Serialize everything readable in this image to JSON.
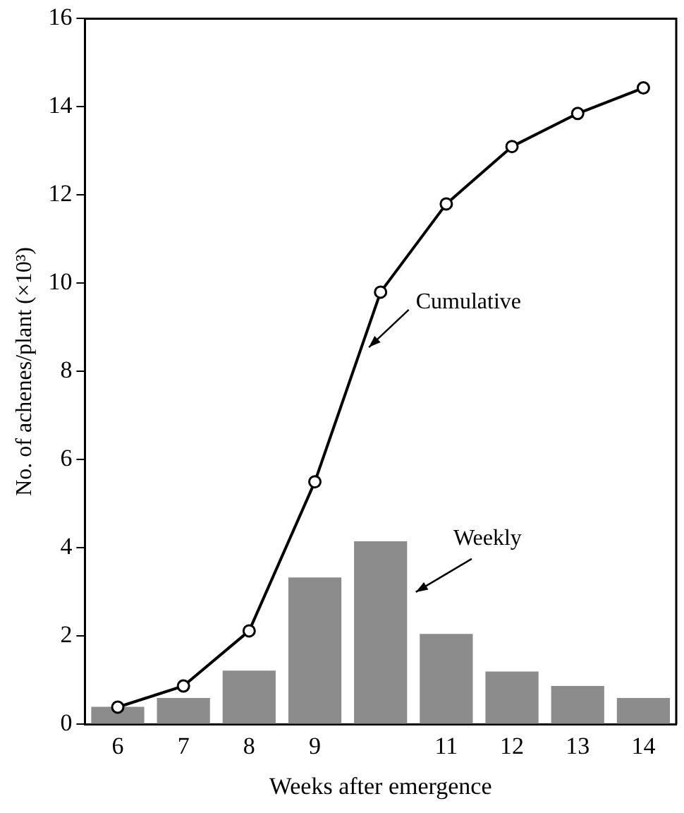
{
  "chart_data": {
    "type": "bar",
    "xlabel": "Weeks after emergence",
    "ylabel": "No. of achenes/plant (×10³)",
    "categories": [
      "6",
      "7",
      "8",
      "9",
      null,
      "11",
      "12",
      "13",
      "14"
    ],
    "series": [
      {
        "name": "Weekly",
        "color": "#8c8c8c",
        "values": [
          0.4,
          0.6,
          1.22,
          3.33,
          4.15,
          2.05,
          1.2,
          0.87,
          0.6
        ]
      },
      {
        "name": "Cumulative",
        "type": "line",
        "color": "#000000",
        "values": [
          0.39,
          0.87,
          2.12,
          5.5,
          9.8,
          11.8,
          13.1,
          13.85,
          14.43
        ]
      }
    ],
    "ylim": [
      0,
      16
    ],
    "yticks": [
      0,
      2,
      4,
      6,
      8,
      10,
      12,
      14,
      16
    ],
    "grid": false,
    "legend": false,
    "marker": "circle",
    "line_style": "solid"
  }
}
